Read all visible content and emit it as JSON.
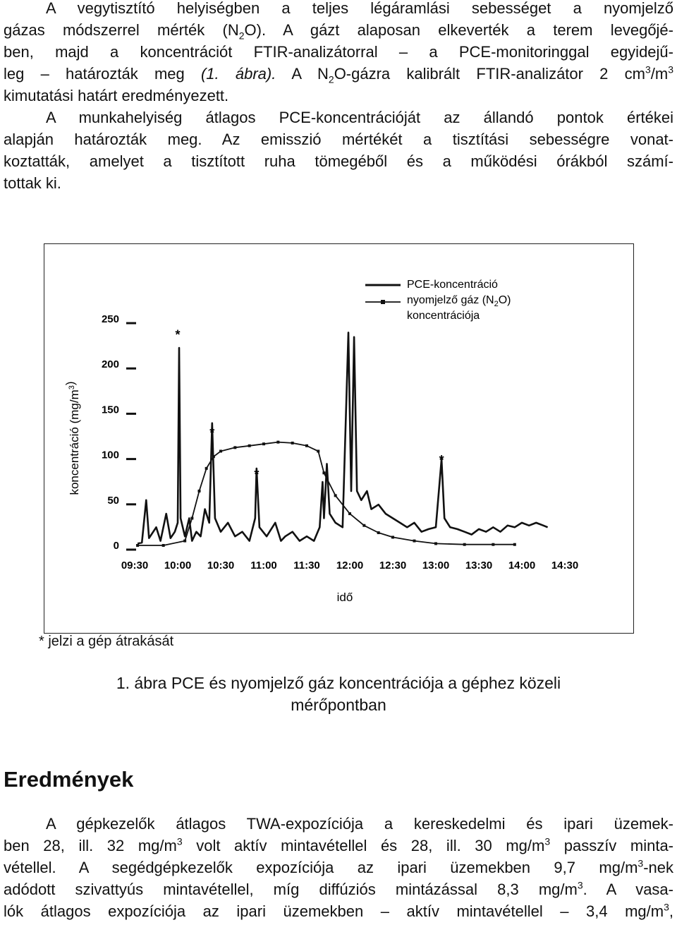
{
  "intro": [
    {
      "lines": [
        [
          "A vegytisztító helyiségben a teljes légáramlási sebességet a nyomjelző"
        ],
        [
          "gázas módszerrel mérték (N",
          {
            "sub": "2"
          },
          "O). A gázt alaposan elkeverték a terem levegőjé-"
        ],
        [
          "ben, majd a koncentrációt FTIR-analizátorral – a PCE-monitoringgal egyidejű-"
        ],
        [
          "leg – határozták meg ",
          {
            "i": "(1. ábra)."
          },
          " A N",
          {
            "sub": "2"
          },
          "O-gázra kalibrált FTIR-analizátor 2 cm",
          {
            "sup": "3"
          },
          "/m",
          {
            "sup": "3"
          }
        ],
        [
          "kimutatási határt eredményezett."
        ]
      ]
    },
    {
      "lines": [
        [
          "A munkahelyiség átlagos PCE-koncentrációját az állandó pontok értékei"
        ],
        [
          "alapján határozták meg. Az emisszió mértékét a tisztítási sebességre vonat-"
        ],
        [
          "koztatták, amelyet a tisztított ruha tömegéből és a működési órákból számí-"
        ],
        [
          "tottak ki."
        ]
      ]
    }
  ],
  "figure": {
    "chart_data": {
      "type": "line",
      "y_label": [
        "koncentráció (mg/m",
        {
          "sup": "3"
        },
        ")"
      ],
      "x_label": "idő",
      "xlim": [
        "09:30",
        "14:30"
      ],
      "xticks": [
        "09:30",
        "10:00",
        "10:30",
        "11:00",
        "11:30",
        "12:00",
        "12:30",
        "13:00",
        "13:30",
        "14:00",
        "14:30"
      ],
      "ylim": [
        0,
        250
      ],
      "yticks": [
        0,
        50,
        100,
        150,
        200,
        250
      ],
      "legend_names": [
        [
          "PCE-koncentráció"
        ],
        [
          "nyomjelző gáz (N",
          {
            "sub": "2"
          },
          "O)",
          "koncentrációja"
        ]
      ],
      "series": [
        {
          "name": "PCE-koncentráció",
          "color": "#111111",
          "x": [
            "09:32",
            "09:35",
            "09:38",
            "09:40",
            "09:45",
            "09:48",
            "09:52",
            "09:55",
            "09:58",
            "10:00",
            "10:01",
            "10:02",
            "10:05",
            "10:08",
            "10:10",
            "10:13",
            "10:16",
            "10:19",
            "10:22",
            "10:24",
            "10:26",
            "10:30",
            "10:35",
            "10:40",
            "10:45",
            "10:50",
            "10:54",
            "10:55",
            "10:57",
            "11:02",
            "11:08",
            "11:12",
            "11:15",
            "11:20",
            "11:25",
            "11:30",
            "11:35",
            "11:39",
            "11:41",
            "11:42",
            "11:44",
            "11:46",
            "11:50",
            "11:55",
            "11:59",
            "12:01",
            "12:03",
            "12:05",
            "12:08",
            "12:12",
            "12:15",
            "12:20",
            "12:25",
            "12:30",
            "12:35",
            "12:40",
            "12:45",
            "12:50",
            "12:55",
            "13:00",
            "13:04",
            "13:06",
            "13:10",
            "13:15",
            "13:20",
            "13:25",
            "13:30",
            "13:35",
            "13:40",
            "13:45",
            "13:50",
            "13:55",
            "14:00",
            "14:05",
            "14:10",
            "14:15",
            "14:18"
          ],
          "values": [
            2,
            3,
            50,
            8,
            20,
            5,
            35,
            8,
            15,
            25,
            218,
            30,
            10,
            30,
            5,
            15,
            10,
            40,
            25,
            135,
            30,
            15,
            25,
            10,
            15,
            5,
            30,
            85,
            20,
            10,
            25,
            5,
            10,
            15,
            5,
            10,
            5,
            20,
            70,
            30,
            90,
            35,
            25,
            20,
            235,
            60,
            230,
            60,
            50,
            60,
            40,
            45,
            35,
            30,
            25,
            20,
            25,
            15,
            18,
            20,
            95,
            30,
            20,
            18,
            15,
            12,
            18,
            15,
            20,
            15,
            22,
            20,
            25,
            22,
            25,
            22,
            20
          ]
        },
        {
          "name": "nyomjelző gáz (N2O) koncentrációja",
          "color": "#111111",
          "x": [
            "09:32",
            "09:50",
            "10:05",
            "10:10",
            "10:15",
            "10:20",
            "10:25",
            "10:30",
            "10:40",
            "10:50",
            "11:00",
            "11:10",
            "11:20",
            "11:30",
            "11:38",
            "11:42",
            "11:50",
            "12:00",
            "12:10",
            "12:20",
            "12:30",
            "12:45",
            "13:00",
            "13:20",
            "13:40",
            "13:55"
          ],
          "values": [
            0,
            0,
            5,
            30,
            60,
            85,
            98,
            104,
            108,
            110,
            112,
            114,
            113,
            110,
            104,
            80,
            55,
            35,
            22,
            14,
            9,
            5,
            2,
            1,
            1,
            1
          ]
        }
      ],
      "stars": [
        {
          "label": "*",
          "x": "10:00",
          "y": 237
        },
        {
          "label": "*",
          "x": "10:24",
          "y": 129
        },
        {
          "label": "*",
          "x": "10:55",
          "y": 83
        },
        {
          "label": "*",
          "x": "13:04",
          "y": 99
        }
      ]
    },
    "note": "* jelzi a gép átrakását",
    "caption": [
      "1. ábra PCE és nyomjelző gáz koncentrációja a géphez közeli",
      "mérőpontban"
    ]
  },
  "results": {
    "heading": "Eredmények",
    "lines": [
      [
        "A gépkezelők átlagos TWA-expozíciója a kereskedelmi és ipari üzemek-"
      ],
      [
        "ben 28, ill. 32 mg/m",
        {
          "sup": "3"
        },
        " volt aktív mintavétellel és 28, ill. 30 mg/m",
        {
          "sup": "3"
        },
        " passzív minta-"
      ],
      [
        "vétellel. A segédgépkezelők expozíciója az ipari üzemekben 9,7 mg/m",
        {
          "sup": "3"
        },
        "-nek"
      ],
      [
        "adódott szivattyús mintavétellel, míg diffúziós mintázással 8,3 mg/m",
        {
          "sup": "3"
        },
        ". A vasa-"
      ],
      [
        "lók átlagos expozíciója az ipari üzemekben – aktív mintavétellel – 3,4 mg/m",
        {
          "sup": "3"
        },
        ","
      ]
    ]
  }
}
